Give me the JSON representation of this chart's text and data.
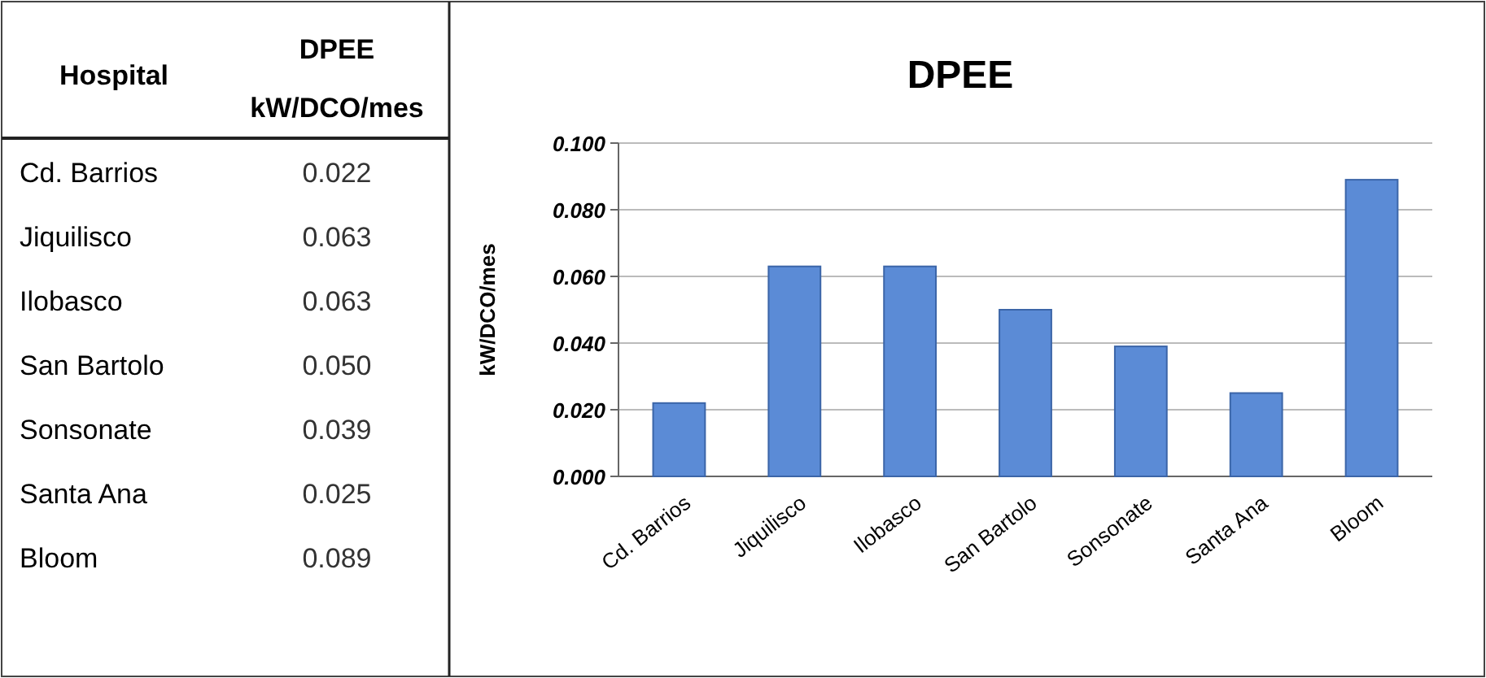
{
  "chart_data": [
    {
      "type": "other",
      "annotations": [
        "Hospital",
        "DPEE kW/DCO/mes",
        "Cd. Barrios",
        "0.022",
        "Jiquilisco",
        "0.063",
        "Ilobasco",
        "0.063",
        "San Bartolo",
        "0.050",
        "Sonsonate",
        "0.039",
        "Santa Ana",
        "0.025",
        "Bloom",
        "0.089"
      ]
    },
    {
      "type": "bar",
      "title": "DPEE",
      "ylabel": "kW/DCO/mes",
      "categories": [
        "Cd. Barrios",
        "Jiquilisco",
        "Ilobasco",
        "San Bartolo",
        "Sonsonate",
        "Santa Ana",
        "Bloom"
      ],
      "values": [
        0.022,
        0.063,
        0.063,
        0.05,
        0.039,
        0.025,
        0.089
      ],
      "color": "#5b8bd6",
      "ylim": [
        0,
        0.1
      ],
      "yticks": [
        {
          "value": 0,
          "label": "0.000"
        },
        {
          "value": 0.02,
          "label": "0.020"
        },
        {
          "value": 0.04,
          "label": "0.040"
        },
        {
          "value": 0.06,
          "label": "0.060"
        },
        {
          "value": 0.08,
          "label": "0.080"
        },
        {
          "value": 0.1,
          "label": "0.100"
        }
      ],
      "grid": "y",
      "legend": false
    }
  ]
}
